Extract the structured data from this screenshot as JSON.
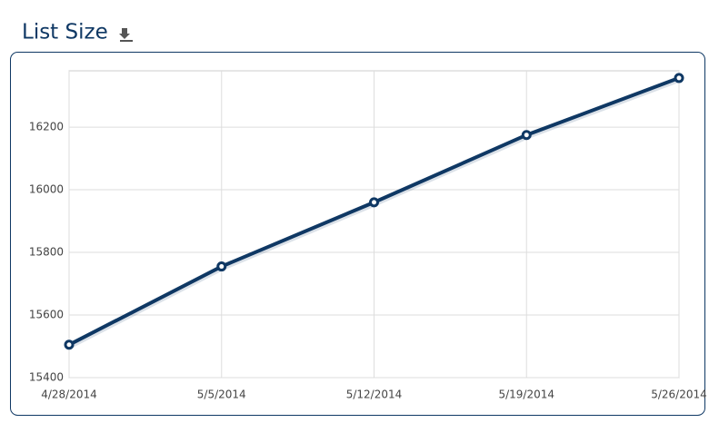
{
  "chart_data": {
    "type": "line",
    "title": "List Size",
    "categories": [
      "4/28/2014",
      "5/5/2014",
      "5/12/2014",
      "5/19/2014",
      "5/26/2014"
    ],
    "series": [
      {
        "name": "List Size",
        "color": "#0f3864",
        "values": [
          15505,
          15755,
          15960,
          16175,
          16357
        ]
      }
    ],
    "ylim": [
      15400,
      16380
    ],
    "yticks": [
      15400,
      15600,
      15800,
      16000,
      16200
    ],
    "grid": true
  }
}
